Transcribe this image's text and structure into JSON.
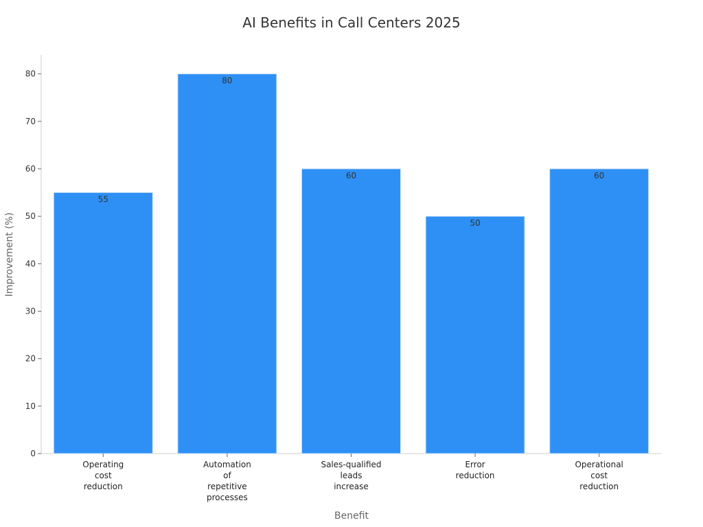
{
  "chart_data": {
    "type": "bar",
    "title": "AI Benefits in Call Centers 2025",
    "xlabel": "Benefit",
    "ylabel": "Improvement (%)",
    "categories": [
      [
        "Operating",
        "cost",
        "reduction"
      ],
      [
        "Automation",
        "of",
        "repetitive",
        "processes"
      ],
      [
        "Sales-qualified",
        "leads",
        "increase"
      ],
      [
        "Error",
        "reduction"
      ],
      [
        "Operational",
        "cost",
        "reduction"
      ]
    ],
    "values": [
      55,
      80,
      60,
      50,
      60
    ],
    "ylim": [
      0,
      84
    ],
    "yticks": [
      0,
      10,
      20,
      30,
      40,
      50,
      60,
      70,
      80
    ],
    "bar_color": "#2e90f5",
    "bar_edge_color": "#cfe3f7",
    "axis_color": "#cccccc",
    "grid": false,
    "legend": "none"
  }
}
